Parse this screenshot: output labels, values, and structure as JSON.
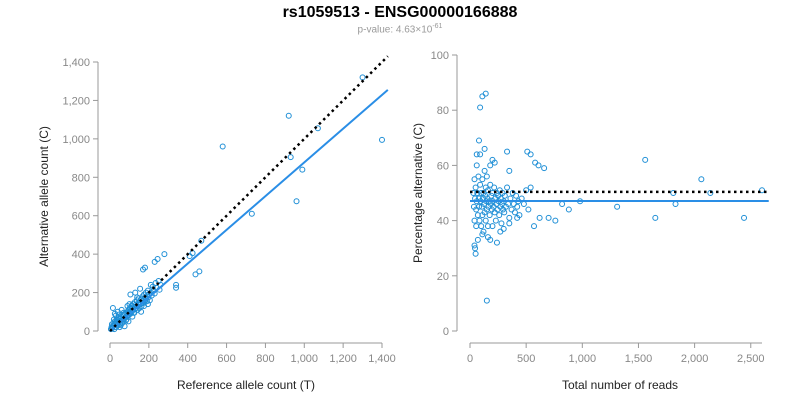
{
  "title": "rs1059513 - ENSG00000166888",
  "subtitle": {
    "prefix": "p-value: 4.63×10",
    "exponent": "-61"
  },
  "colors": {
    "points": "#1f8fd6",
    "fit_line": "#2a8ee6",
    "reference_line": "#000000",
    "axis": "#999999",
    "tick_text": "#888888"
  },
  "chart_data": [
    {
      "type": "scatter",
      "xlabel": "Reference allele count (T)",
      "ylabel": "Alternative allele count (C)",
      "xlim": [
        0,
        1400
      ],
      "ylim": [
        0,
        1400
      ],
      "xticks": [
        0,
        200,
        400,
        600,
        800,
        1000,
        1200,
        1400
      ],
      "yticks": [
        0,
        200,
        400,
        600,
        800,
        1000,
        1200,
        1400
      ],
      "tick_labels_x": [
        "0",
        "200",
        "400",
        "600",
        "800",
        "1,000",
        "1,200",
        "1,400"
      ],
      "tick_labels_y": [
        "0",
        "200",
        "400",
        "600",
        "800",
        "1,000",
        "1,200",
        "1,400"
      ],
      "grid": false,
      "reference_line": {
        "style": "dotted",
        "x": [
          0,
          1430
        ],
        "y": [
          0,
          1430
        ]
      },
      "fit_line": {
        "style": "solid",
        "x": [
          0,
          1430
        ],
        "y": [
          0,
          1255
        ]
      },
      "points": [
        [
          5,
          10
        ],
        [
          8,
          20
        ],
        [
          10,
          35
        ],
        [
          12,
          15
        ],
        [
          15,
          25
        ],
        [
          18,
          40
        ],
        [
          20,
          30
        ],
        [
          22,
          10
        ],
        [
          25,
          50
        ],
        [
          28,
          35
        ],
        [
          30,
          45
        ],
        [
          32,
          20
        ],
        [
          35,
          60
        ],
        [
          38,
          30
        ],
        [
          40,
          55
        ],
        [
          42,
          40
        ],
        [
          45,
          70
        ],
        [
          48,
          50
        ],
        [
          50,
          35
        ],
        [
          52,
          65
        ],
        [
          55,
          45
        ],
        [
          58,
          75
        ],
        [
          60,
          55
        ],
        [
          62,
          40
        ],
        [
          65,
          80
        ],
        [
          68,
          60
        ],
        [
          70,
          50
        ],
        [
          72,
          85
        ],
        [
          75,
          65
        ],
        [
          78,
          90
        ],
        [
          80,
          70
        ],
        [
          82,
          55
        ],
        [
          85,
          95
        ],
        [
          88,
          75
        ],
        [
          90,
          100
        ],
        [
          92,
          80
        ],
        [
          95,
          110
        ],
        [
          98,
          85
        ],
        [
          100,
          95
        ],
        [
          102,
          120
        ],
        [
          105,
          90
        ],
        [
          108,
          105
        ],
        [
          110,
          130
        ],
        [
          112,
          100
        ],
        [
          115,
          115
        ],
        [
          118,
          140
        ],
        [
          120,
          110
        ],
        [
          122,
          95
        ],
        [
          125,
          125
        ],
        [
          128,
          150
        ],
        [
          130,
          115
        ],
        [
          132,
          135
        ],
        [
          135,
          120
        ],
        [
          138,
          160
        ],
        [
          140,
          130
        ],
        [
          142,
          110
        ],
        [
          145,
          145
        ],
        [
          148,
          170
        ],
        [
          150,
          135
        ],
        [
          152,
          120
        ],
        [
          155,
          150
        ],
        [
          158,
          140
        ],
        [
          160,
          165
        ],
        [
          162,
          130
        ],
        [
          165,
          155
        ],
        [
          168,
          180
        ],
        [
          170,
          145
        ],
        [
          172,
          160
        ],
        [
          175,
          190
        ],
        [
          178,
          150
        ],
        [
          180,
          175
        ],
        [
          182,
          160
        ],
        [
          185,
          200
        ],
        [
          188,
          170
        ],
        [
          190,
          155
        ],
        [
          192,
          185
        ],
        [
          195,
          210
        ],
        [
          198,
          175
        ],
        [
          200,
          190
        ],
        [
          205,
          160
        ],
        [
          210,
          200
        ],
        [
          215,
          185
        ],
        [
          220,
          230
        ],
        [
          225,
          210
        ],
        [
          230,
          195
        ],
        [
          235,
          250
        ],
        [
          240,
          225
        ],
        [
          250,
          260
        ],
        [
          255,
          215
        ],
        [
          260,
          240
        ],
        [
          15,
          120
        ],
        [
          25,
          90
        ],
        [
          40,
          100
        ],
        [
          60,
          110
        ],
        [
          90,
          130
        ],
        [
          105,
          190
        ],
        [
          130,
          200
        ],
        [
          155,
          220
        ],
        [
          170,
          320
        ],
        [
          180,
          330
        ],
        [
          230,
          360
        ],
        [
          245,
          375
        ],
        [
          280,
          400
        ],
        [
          340,
          225
        ],
        [
          340,
          240
        ],
        [
          410,
          390
        ],
        [
          425,
          405
        ],
        [
          440,
          295
        ],
        [
          460,
          310
        ],
        [
          470,
          470
        ],
        [
          580,
          960
        ],
        [
          730,
          610
        ],
        [
          920,
          1120
        ],
        [
          930,
          905
        ],
        [
          960,
          675
        ],
        [
          990,
          840
        ],
        [
          1070,
          1055
        ],
        [
          1300,
          1320
        ],
        [
          1400,
          995
        ],
        [
          20,
          60
        ],
        [
          30,
          80
        ],
        [
          45,
          85
        ],
        [
          55,
          30
        ],
        [
          70,
          95
        ],
        [
          85,
          60
        ],
        [
          100,
          140
        ],
        [
          115,
          75
        ],
        [
          125,
          95
        ],
        [
          140,
          175
        ],
        [
          160,
          100
        ],
        [
          175,
          130
        ],
        [
          195,
          140
        ],
        [
          210,
          240
        ],
        [
          50,
          20
        ],
        [
          75,
          25
        ],
        [
          95,
          50
        ]
      ]
    },
    {
      "type": "scatter",
      "xlabel": "Total number of reads",
      "ylabel": "Percentage alternative (C)",
      "xlim": [
        0,
        2600
      ],
      "ylim": [
        0,
        100
      ],
      "xticks": [
        0,
        500,
        1000,
        1500,
        2000,
        2500
      ],
      "yticks": [
        0,
        20,
        40,
        60,
        80,
        100
      ],
      "tick_labels_x": [
        "0",
        "500",
        "1,000",
        "1,500",
        "2,000",
        "2,500"
      ],
      "tick_labels_y": [
        "0",
        "20",
        "40",
        "60",
        "80",
        "100"
      ],
      "grid": false,
      "reference_line": {
        "style": "dotted",
        "x": [
          0,
          2660
        ],
        "y": [
          50.4,
          50.4
        ]
      },
      "fit_line": {
        "style": "solid",
        "x": [
          0,
          2660
        ],
        "y": [
          47.1,
          47.1
        ]
      },
      "points": [
        [
          30,
          50
        ],
        [
          35,
          45
        ],
        [
          40,
          40
        ],
        [
          40,
          55
        ],
        [
          45,
          30
        ],
        [
          45,
          48
        ],
        [
          50,
          52
        ],
        [
          55,
          44
        ],
        [
          55,
          38
        ],
        [
          60,
          60
        ],
        [
          60,
          47
        ],
        [
          65,
          50
        ],
        [
          70,
          42
        ],
        [
          70,
          33
        ],
        [
          75,
          56
        ],
        [
          80,
          48
        ],
        [
          80,
          45
        ],
        [
          85,
          40
        ],
        [
          90,
          53
        ],
        [
          90,
          64
        ],
        [
          95,
          47
        ],
        [
          100,
          38
        ],
        [
          100,
          50
        ],
        [
          105,
          45
        ],
        [
          110,
          55
        ],
        [
          110,
          42
        ],
        [
          115,
          48
        ],
        [
          120,
          36
        ],
        [
          120,
          50
        ],
        [
          125,
          46
        ],
        [
          130,
          58
        ],
        [
          130,
          43
        ],
        [
          135,
          49
        ],
        [
          140,
          52
        ],
        [
          140,
          40
        ],
        [
          145,
          47
        ],
        [
          150,
          44
        ],
        [
          150,
          56
        ],
        [
          155,
          48
        ],
        [
          160,
          38
        ],
        [
          160,
          51
        ],
        [
          165,
          45
        ],
        [
          170,
          47
        ],
        [
          175,
          42
        ],
        [
          180,
          53
        ],
        [
          180,
          60
        ],
        [
          185,
          46
        ],
        [
          190,
          49
        ],
        [
          195,
          44
        ],
        [
          200,
          50
        ],
        [
          200,
          38
        ],
        [
          205,
          47
        ],
        [
          210,
          45
        ],
        [
          215,
          52
        ],
        [
          220,
          43
        ],
        [
          225,
          48
        ],
        [
          230,
          40
        ],
        [
          235,
          46
        ],
        [
          240,
          50
        ],
        [
          245,
          44
        ],
        [
          250,
          49
        ],
        [
          255,
          47
        ],
        [
          260,
          42
        ],
        [
          265,
          51
        ],
        [
          270,
          45
        ],
        [
          275,
          48
        ],
        [
          280,
          39
        ],
        [
          285,
          46
        ],
        [
          290,
          50
        ],
        [
          295,
          44
        ],
        [
          300,
          47
        ],
        [
          305,
          43
        ],
        [
          310,
          49
        ],
        [
          320,
          45
        ],
        [
          330,
          52
        ],
        [
          340,
          46
        ],
        [
          350,
          41
        ],
        [
          360,
          48
        ],
        [
          370,
          44
        ],
        [
          380,
          50
        ],
        [
          390,
          46
        ],
        [
          400,
          43
        ],
        [
          410,
          49
        ],
        [
          420,
          45
        ],
        [
          430,
          47
        ],
        [
          440,
          42
        ],
        [
          460,
          48
        ],
        [
          480,
          46
        ],
        [
          500,
          51
        ],
        [
          520,
          44
        ],
        [
          540,
          52
        ],
        [
          60,
          64
        ],
        [
          80,
          69
        ],
        [
          90,
          81
        ],
        [
          110,
          85
        ],
        [
          140,
          86
        ],
        [
          130,
          66
        ],
        [
          200,
          62
        ],
        [
          220,
          61
        ],
        [
          330,
          65
        ],
        [
          350,
          58
        ],
        [
          510,
          65
        ],
        [
          540,
          64
        ],
        [
          580,
          61
        ],
        [
          610,
          60
        ],
        [
          660,
          59
        ],
        [
          700,
          41
        ],
        [
          760,
          40
        ],
        [
          820,
          46
        ],
        [
          880,
          44
        ],
        [
          980,
          47
        ],
        [
          1310,
          45
        ],
        [
          1560,
          62
        ],
        [
          1650,
          41
        ],
        [
          1830,
          46
        ],
        [
          2060,
          55
        ],
        [
          2140,
          50
        ],
        [
          2440,
          41
        ],
        [
          2600,
          51
        ],
        [
          150,
          11
        ],
        [
          40,
          31
        ],
        [
          50,
          28
        ],
        [
          180,
          33
        ],
        [
          270,
          36
        ],
        [
          110,
          35
        ],
        [
          160,
          34
        ],
        [
          240,
          32
        ],
        [
          300,
          37
        ],
        [
          350,
          39
        ],
        [
          420,
          41
        ],
        [
          570,
          38
        ],
        [
          620,
          41
        ],
        [
          1810,
          50
        ]
      ]
    }
  ]
}
